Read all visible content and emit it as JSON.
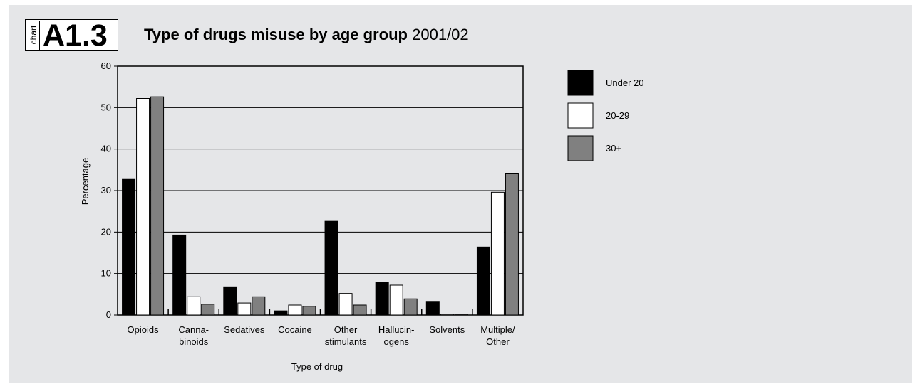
{
  "badge": {
    "word": "chart",
    "number": "A1.3"
  },
  "header": {
    "title_bold": "Type of drugs misuse by age group",
    "title_year": "2001/02"
  },
  "chart_data": {
    "type": "bar",
    "title": "Type of drugs misuse by age group 2001/02",
    "xlabel": "Type of drug",
    "ylabel": "Percentage",
    "ylim": [
      0,
      60
    ],
    "yticks": [
      0,
      10,
      20,
      30,
      40,
      50,
      60
    ],
    "grid": true,
    "legend_position": "right",
    "categories": [
      [
        "Opioids"
      ],
      [
        "Canna-",
        "binoids"
      ],
      [
        "Sedatives"
      ],
      [
        "Cocaine"
      ],
      [
        "Other",
        "stimulants"
      ],
      [
        "Hallucin-",
        "ogens"
      ],
      [
        "Solvents"
      ],
      [
        "Multiple/",
        "Other"
      ]
    ],
    "series": [
      {
        "name": "Under 20",
        "color": "#000000",
        "values": [
          32.7,
          19.3,
          6.8,
          1.0,
          22.6,
          7.8,
          3.3,
          16.4
        ]
      },
      {
        "name": "20-29",
        "color": "#ffffff",
        "values": [
          52.2,
          4.4,
          2.9,
          2.4,
          5.2,
          7.2,
          0.2,
          29.6
        ]
      },
      {
        "name": "30+",
        "color": "#808080",
        "values": [
          52.6,
          2.6,
          4.4,
          2.1,
          2.4,
          3.9,
          0.2,
          34.2
        ]
      }
    ]
  }
}
